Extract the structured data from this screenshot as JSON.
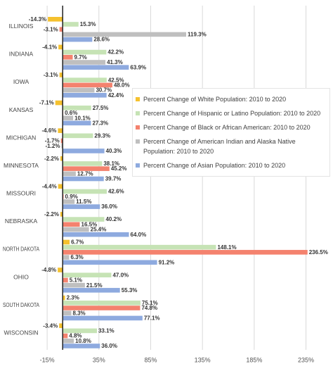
{
  "chart_data": {
    "type": "hbar",
    "categories": [
      "ILLINOIS",
      "INDIANA",
      "IOWA",
      "KANSAS",
      "MICHIGAN",
      "MINNESOTA",
      "MISSOURI",
      "NEBRASKA",
      "NORTH DAKOTA",
      "OHIO",
      "SOUTH DAKOTA",
      "WISCONSIN"
    ],
    "series": [
      {
        "name": "Percent Change of White Population: 2010 to 2020",
        "color": "#f5c12e",
        "values": [
          -14.3,
          -4.1,
          -3.1,
          -7.1,
          -4.6,
          -2.2,
          -4.4,
          -2.2,
          6.7,
          -4.8,
          2.3,
          -3.4
        ],
        "value_labels": [
          "-14.3%",
          "-4.1%",
          "-3.1%",
          "-7.1%",
          "-4.6%",
          "-2.2%",
          "-4.4%",
          "-2.2%",
          "6.7%",
          "-4.8%",
          "2.3%",
          "-3.4%"
        ]
      },
      {
        "name": "Percent Change of Hispanic or Latino Population: 2010 to 2020",
        "color": "#c6e3b5",
        "values": [
          15.3,
          42.2,
          42.5,
          27.5,
          29.3,
          38.1,
          42.6,
          40.2,
          148.1,
          47.0,
          75.1,
          33.1
        ],
        "value_labels": [
          "15.3%",
          "42.2%",
          "42.5%",
          "27.5%",
          "29.3%",
          "38.1%",
          "42.6%",
          "40.2%",
          "148.1%",
          "47.0%",
          "75.1%",
          "33.1%"
        ]
      },
      {
        "name": "Percent Change of Black or African American: 2010 to 2020",
        "color": "#f4826e",
        "values": [
          -3.1,
          9.7,
          48.0,
          0.6,
          -1.7,
          45.2,
          0.9,
          16.5,
          236.5,
          5.1,
          74.8,
          4.8
        ],
        "value_labels": [
          "-3.1%",
          "9.7%",
          "48.0%",
          "0.6%",
          "-1.7%",
          "45.2%",
          "0.9%",
          "16.5%",
          "236.5%",
          "5.1%",
          "74.8%",
          "4.8%"
        ]
      },
      {
        "name": "Percent Change of American Indian and Alaska Native Population: 2010 to 2020",
        "color": "#bfbfbf",
        "values": [
          119.3,
          41.3,
          30.7,
          10.1,
          -1.2,
          12.7,
          11.5,
          25.4,
          6.3,
          21.5,
          8.3,
          10.8
        ],
        "value_labels": [
          "119.3%",
          "41.3%",
          "30.7%",
          "10.1%",
          "-1.2%",
          "12.7%",
          "11.5%",
          "25.4%",
          "6.3%",
          "21.5%",
          "8.3%",
          "10.8%"
        ]
      },
      {
        "name": "Percent Change of Asian Population: 2010 to 2020",
        "color": "#8eaadf",
        "values": [
          28.6,
          63.9,
          42.4,
          27.3,
          40.3,
          39.7,
          36.0,
          64.0,
          91.2,
          55.3,
          77.1,
          36.0
        ],
        "value_labels": [
          "28.6%",
          "63.9%",
          "42.4%",
          "27.3%",
          "40.3%",
          "39.7%",
          "36.0%",
          "64.0%",
          "91.2%",
          "55.3%",
          "77.1%",
          "36.0%"
        ]
      }
    ],
    "xlim": [
      -30,
      255
    ],
    "xticks": [
      {
        "value": -15,
        "label": "-15%"
      },
      {
        "value": 35,
        "label": "35%"
      },
      {
        "value": 85,
        "label": "85%"
      },
      {
        "value": 135,
        "label": "135%"
      },
      {
        "value": 185,
        "label": "185%"
      },
      {
        "value": 235,
        "label": "235%"
      }
    ],
    "grid": true,
    "legend": "center-right"
  }
}
